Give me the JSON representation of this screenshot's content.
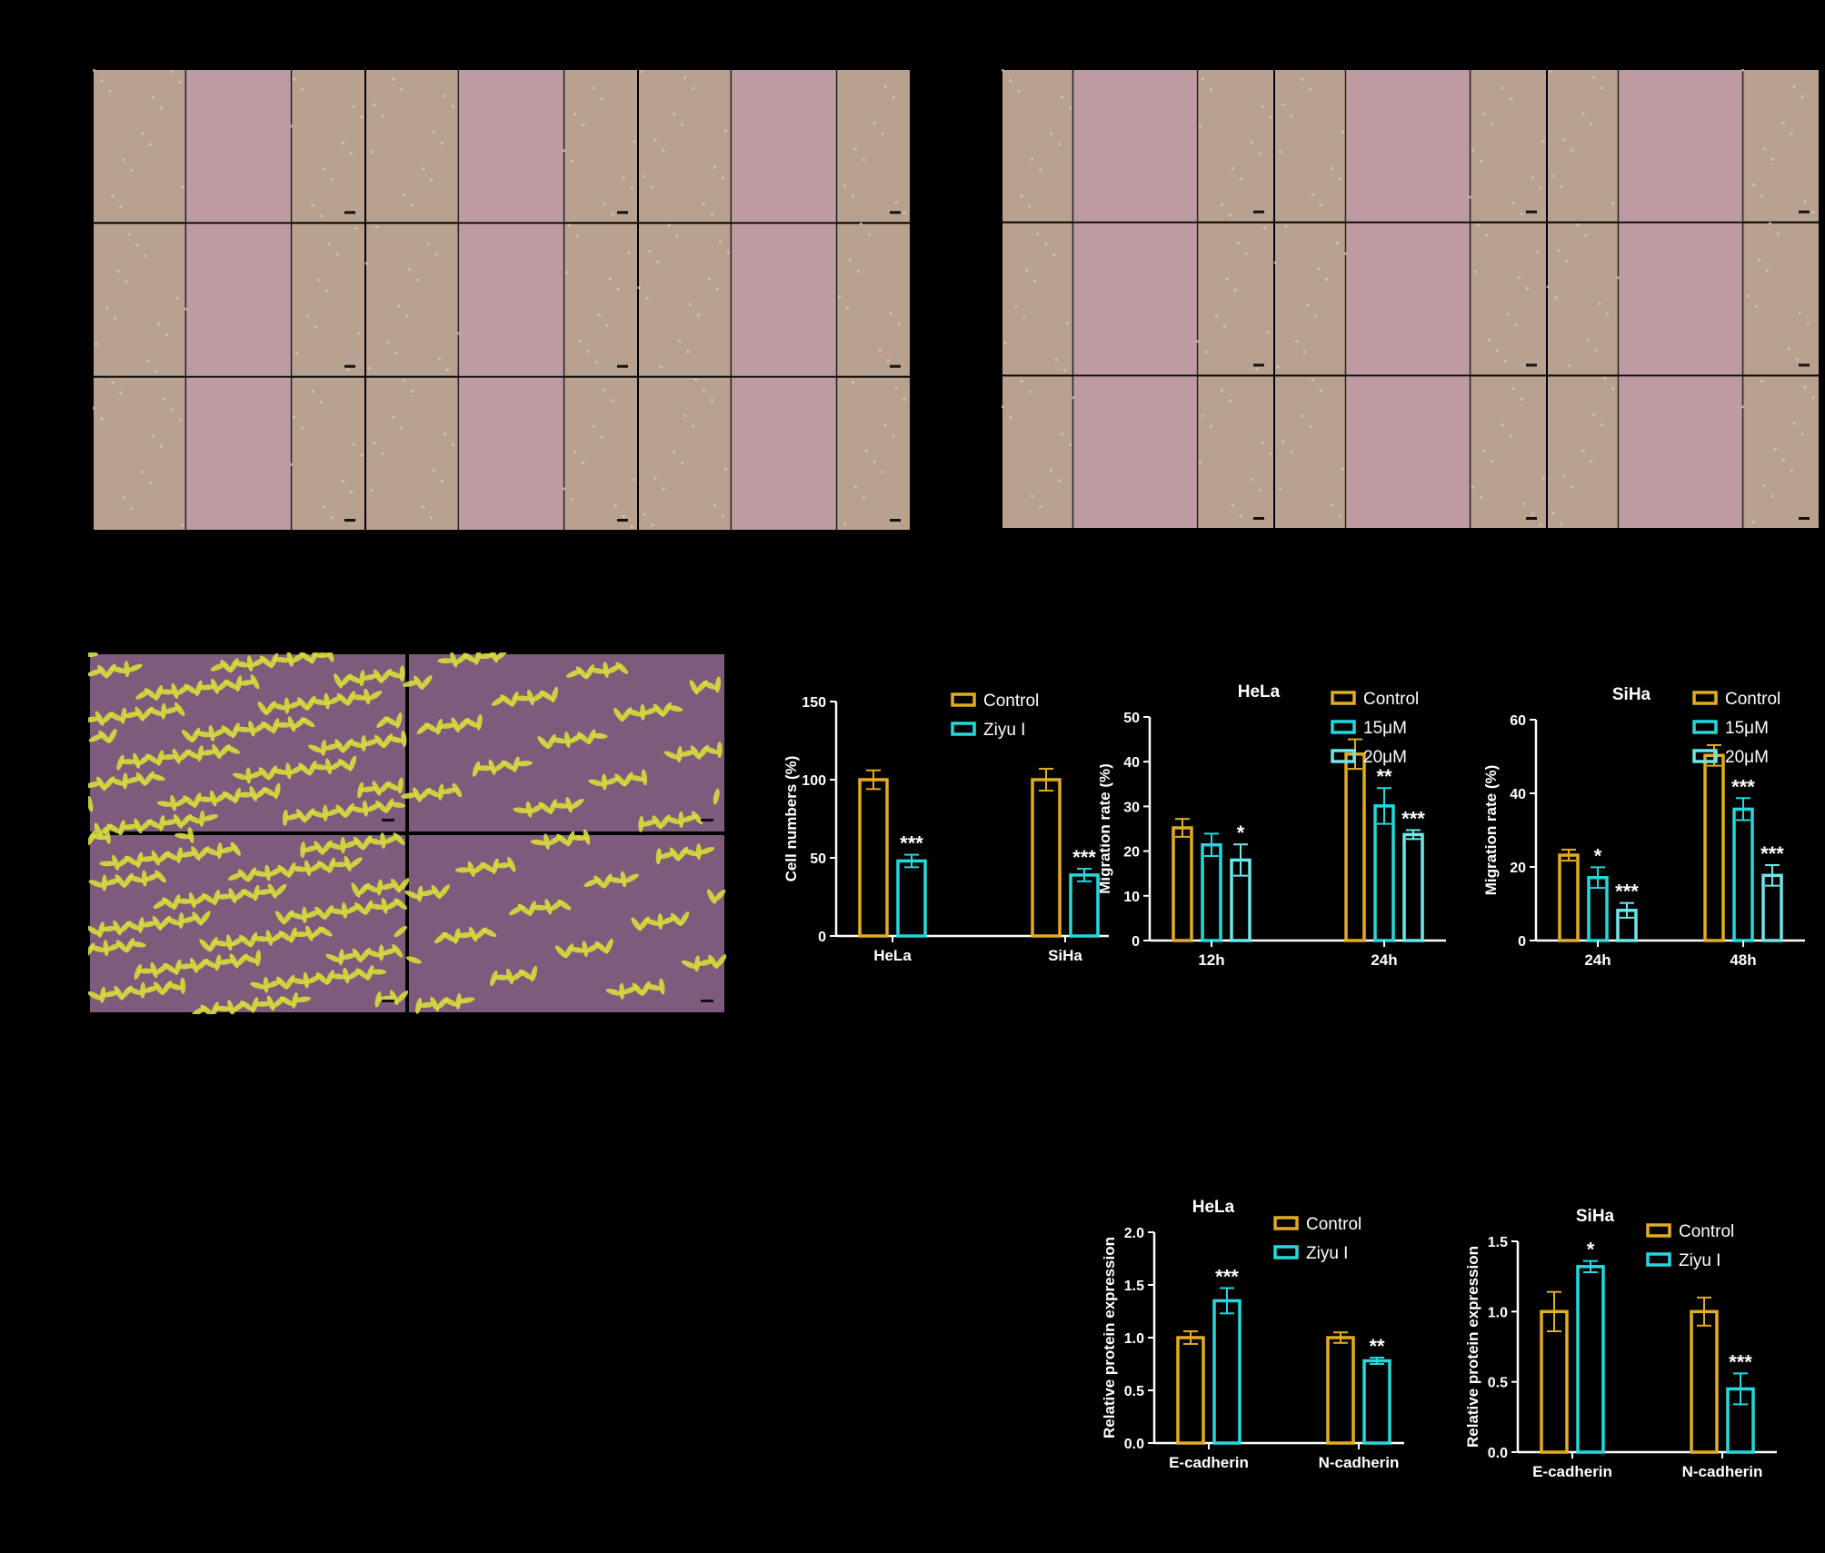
{
  "colors": {
    "control": "#E4AC1F",
    "treat1": "#24D9DE",
    "treat2": "#6EE7E9",
    "axis": "#FFFFFF",
    "wound_bg": "#B9A18F",
    "wound_gap": "#BE9AA3",
    "transwell_bg": "#7E5A7C",
    "cell_yellow": "#D7DD3C"
  },
  "chart_data": [
    {
      "id": "cell-numbers",
      "type": "bar",
      "title": "",
      "xlabel": "",
      "ylabel": "Cell numbers (%)",
      "ylim": [
        0,
        150
      ],
      "yticks": [
        0,
        50,
        100,
        150
      ],
      "categories": [
        "HeLa",
        "SiHa"
      ],
      "series": [
        {
          "name": "Control",
          "color_key": "control",
          "values": [
            100,
            100
          ],
          "errors": [
            6,
            7
          ],
          "sig": [
            "",
            ""
          ]
        },
        {
          "name": "Ziyu I",
          "color_key": "treat1",
          "values": [
            48,
            39
          ],
          "errors": [
            4,
            4
          ],
          "sig": [
            "***",
            "***"
          ]
        }
      ],
      "legend": "top-right"
    },
    {
      "id": "migration-hela",
      "type": "bar",
      "title": "HeLa",
      "xlabel": "",
      "ylabel": "Migration rate (%)",
      "ylim": [
        0,
        50
      ],
      "yticks": [
        0,
        10,
        20,
        30,
        40,
        50
      ],
      "categories": [
        "12h",
        "24h"
      ],
      "series": [
        {
          "name": "Control",
          "color_key": "control",
          "values": [
            25.2,
            41.7
          ],
          "errors": [
            2,
            3.3
          ],
          "sig": [
            "",
            ""
          ]
        },
        {
          "name": "15μM",
          "color_key": "treat1",
          "values": [
            21.4,
            30.1
          ],
          "errors": [
            2.5,
            4
          ],
          "sig": [
            "",
            "**"
          ]
        },
        {
          "name": "20μM",
          "color_key": "treat2",
          "values": [
            18,
            23.7
          ],
          "errors": [
            3.5,
            1
          ],
          "sig": [
            "*",
            "***"
          ]
        }
      ],
      "legend": "top-right"
    },
    {
      "id": "migration-siha",
      "type": "bar",
      "title": "SiHa",
      "xlabel": "",
      "ylabel": "Migration rate (%)",
      "ylim": [
        0,
        60
      ],
      "yticks": [
        0,
        20,
        40,
        60
      ],
      "categories": [
        "24h",
        "48h"
      ],
      "series": [
        {
          "name": "Control",
          "color_key": "control",
          "values": [
            23.2,
            50.3
          ],
          "errors": [
            1.5,
            2.8
          ],
          "sig": [
            "",
            ""
          ]
        },
        {
          "name": "15μM",
          "color_key": "treat1",
          "values": [
            17.1,
            35.7
          ],
          "errors": [
            2.8,
            3
          ],
          "sig": [
            "*",
            "***"
          ]
        },
        {
          "name": "20μM",
          "color_key": "treat2",
          "values": [
            8.2,
            17.7
          ],
          "errors": [
            2,
            2.8
          ],
          "sig": [
            "***",
            "***"
          ]
        }
      ],
      "legend": "top-right"
    },
    {
      "id": "protein-hela",
      "type": "bar",
      "title": "HeLa",
      "xlabel": "",
      "ylabel": "Relative protein expression",
      "ylim": [
        0,
        2.0
      ],
      "yticks": [
        "0.0",
        "0.5",
        "1.0",
        "1.5",
        "2.0"
      ],
      "categories": [
        "E-cadherin",
        "N-cadherin"
      ],
      "series": [
        {
          "name": "Control",
          "color_key": "control",
          "values": [
            1.0,
            1.0
          ],
          "errors": [
            0.06,
            0.05
          ],
          "sig": [
            "",
            ""
          ]
        },
        {
          "name": "Ziyu I",
          "color_key": "treat1",
          "values": [
            1.35,
            0.78
          ],
          "errors": [
            0.12,
            0.03
          ],
          "sig": [
            "***",
            "**"
          ]
        }
      ],
      "legend": "top-right"
    },
    {
      "id": "protein-siha",
      "type": "bar",
      "title": "SiHa",
      "xlabel": "",
      "ylabel": "Relative protein expression",
      "ylim": [
        0,
        1.5
      ],
      "yticks": [
        "0.0",
        "0.5",
        "1.0",
        "1.5"
      ],
      "categories": [
        "E-cadherin",
        "N-cadherin"
      ],
      "series": [
        {
          "name": "Control",
          "color_key": "control",
          "values": [
            1.0,
            1.0
          ],
          "errors": [
            0.14,
            0.1
          ],
          "sig": [
            "",
            ""
          ]
        },
        {
          "name": "Ziyu I",
          "color_key": "treat1",
          "values": [
            1.32,
            0.45
          ],
          "errors": [
            0.04,
            0.11
          ],
          "sig": [
            "*",
            "***"
          ]
        }
      ],
      "legend": "top-right"
    }
  ]
}
